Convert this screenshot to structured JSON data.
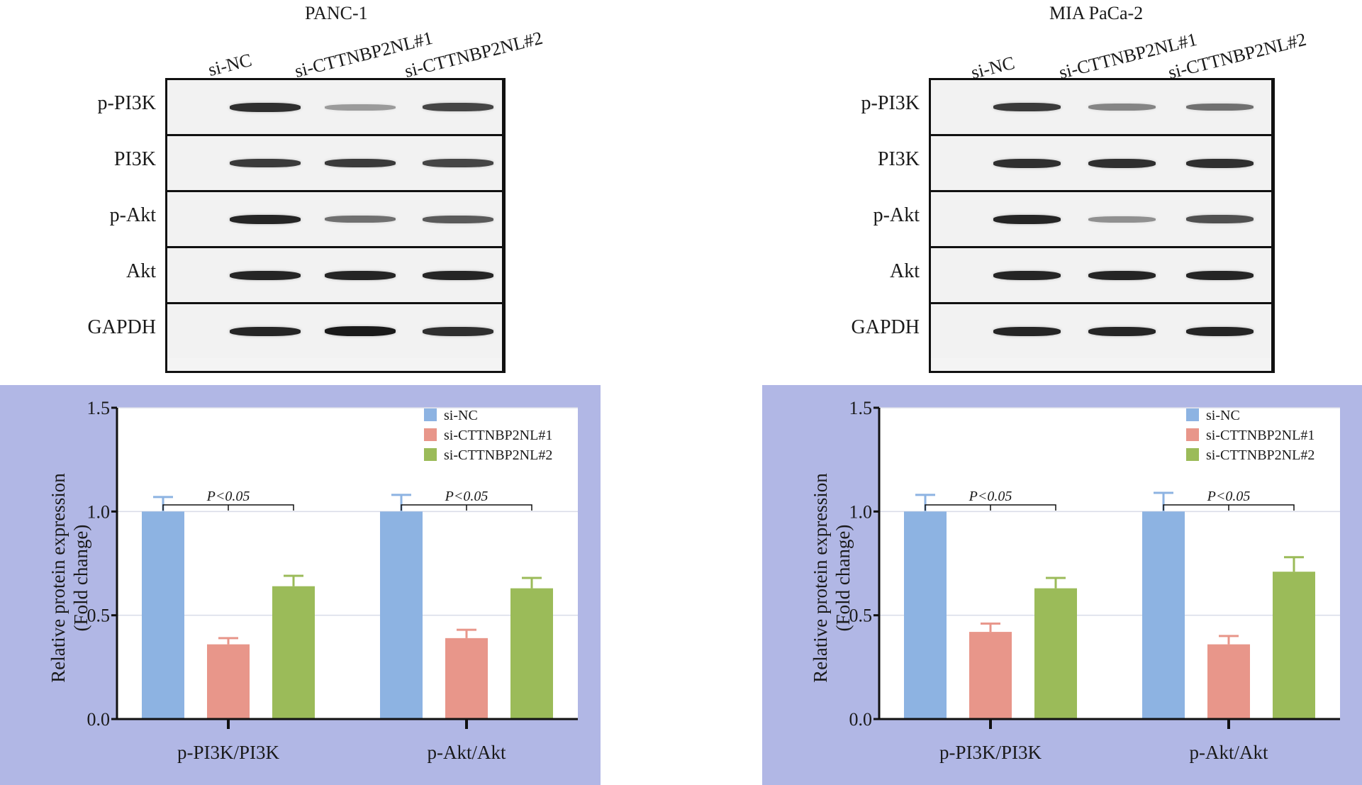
{
  "panels": [
    {
      "title": "PANC-1",
      "lanes": [
        "si-NC",
        "si-CTTNBP2NL#1",
        "si-CTTNBP2NL#2"
      ],
      "blots": [
        {
          "label": "p-PI3K",
          "intensity": [
            0.85,
            0.35,
            0.75
          ]
        },
        {
          "label": "PI3K",
          "intensity": [
            0.8,
            0.8,
            0.75
          ]
        },
        {
          "label": "p-Akt",
          "intensity": [
            0.9,
            0.55,
            0.65
          ]
        },
        {
          "label": "Akt",
          "intensity": [
            0.9,
            0.9,
            0.9
          ]
        },
        {
          "label": "GAPDH",
          "intensity": [
            0.9,
            0.95,
            0.85
          ]
        }
      ]
    },
    {
      "title": "MIA PaCa-2",
      "lanes": [
        "si-NC",
        "si-CTTNBP2NL#1",
        "si-CTTNBP2NL#2"
      ],
      "blots": [
        {
          "label": "p-PI3K",
          "intensity": [
            0.8,
            0.45,
            0.55
          ]
        },
        {
          "label": "PI3K",
          "intensity": [
            0.85,
            0.85,
            0.85
          ]
        },
        {
          "label": "p-Akt",
          "intensity": [
            0.9,
            0.4,
            0.7
          ]
        },
        {
          "label": "Akt",
          "intensity": [
            0.9,
            0.9,
            0.9
          ]
        },
        {
          "label": "GAPDH",
          "intensity": [
            0.9,
            0.9,
            0.9
          ]
        }
      ]
    }
  ],
  "colors": {
    "si-NC": "#8db3e2",
    "si-CTTNBP2NL#1": "#e8968a",
    "si-CTTNBP2NL#2": "#9bbb59",
    "panel_bg": "#b1b7e5"
  },
  "chart_data": [
    {
      "type": "bar",
      "categories": [
        "p-PI3K/PI3K",
        "p-Akt/Akt"
      ],
      "series": [
        {
          "name": "si-NC",
          "values": [
            1.0,
            1.0
          ],
          "errors": [
            0.07,
            0.08
          ]
        },
        {
          "name": "si-CTTNBP2NL#1",
          "values": [
            0.36,
            0.39
          ],
          "errors": [
            0.03,
            0.04
          ]
        },
        {
          "name": "si-CTTNBP2NL#2",
          "values": [
            0.64,
            0.63
          ],
          "errors": [
            0.05,
            0.05
          ]
        }
      ],
      "ylabel_line1": "Relative protein expression",
      "ylabel_line2": "(Fold change)",
      "ylim": [
        0,
        1.5
      ],
      "yticks": [
        "0.0",
        "0.5",
        "1.0",
        "1.5"
      ],
      "annotations": [
        {
          "label": "P<0.05",
          "category": "p-PI3K/PI3K"
        },
        {
          "label": "P<0.05",
          "category": "p-Akt/Akt"
        }
      ],
      "grid": true,
      "legend": "top-right"
    },
    {
      "type": "bar",
      "categories": [
        "p-PI3K/PI3K",
        "p-Akt/Akt"
      ],
      "series": [
        {
          "name": "si-NC",
          "values": [
            1.0,
            1.0
          ],
          "errors": [
            0.08,
            0.09
          ]
        },
        {
          "name": "si-CTTNBP2NL#1",
          "values": [
            0.42,
            0.36
          ],
          "errors": [
            0.04,
            0.04
          ]
        },
        {
          "name": "si-CTTNBP2NL#2",
          "values": [
            0.63,
            0.71
          ],
          "errors": [
            0.05,
            0.07
          ]
        }
      ],
      "ylabel_line1": "Relative protein expression",
      "ylabel_line2": "(Fold change)",
      "ylim": [
        0,
        1.5
      ],
      "yticks": [
        "0.0",
        "0.5",
        "1.0",
        "1.5"
      ],
      "annotations": [
        {
          "label": "P<0.05",
          "category": "p-PI3K/PI3K"
        },
        {
          "label": "P<0.05",
          "category": "p-Akt/Akt"
        }
      ],
      "grid": true,
      "legend": "top-right"
    }
  ]
}
